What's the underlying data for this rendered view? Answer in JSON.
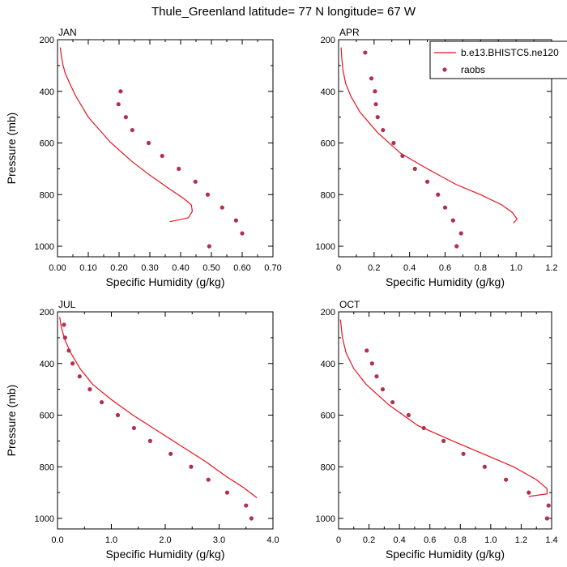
{
  "figure": {
    "title": "Thule_Greenland  latitude= 77 N longitude= 67 W"
  },
  "legend": {
    "placement": "top-right of APR panel",
    "entries": [
      {
        "label": "b.e13.BHISTC5.ne120",
        "style": "line",
        "color": "#e8131f"
      },
      {
        "label": "raobs",
        "style": "marker",
        "color": "#b2304f"
      }
    ]
  },
  "colors": {
    "model_line": "#e8131f",
    "raobs_marker": "#b2304f"
  },
  "chart_data": [
    {
      "type": "line",
      "panel": "JAN",
      "title": "JAN",
      "xlabel": "Specific Humidity (g/kg)",
      "ylabel": "Pressure (mb)",
      "xlim": [
        0,
        0.7
      ],
      "ylim": [
        1000,
        200
      ],
      "y_reversed": true,
      "xticks": [
        "0.00",
        "0.10",
        "0.20",
        "0.30",
        "0.40",
        "0.50",
        "0.60",
        "0.70"
      ],
      "yticks": [
        "200",
        "400",
        "600",
        "800",
        "1000"
      ],
      "series": [
        {
          "name": "b.e13.BHISTC5.ne120",
          "kind": "line",
          "x": [
            0.365,
            0.425,
            0.438,
            0.435,
            0.41,
            0.36,
            0.3,
            0.24,
            0.17,
            0.1,
            0.06,
            0.04,
            0.025,
            0.017,
            0.012,
            0.009
          ],
          "y": [
            905,
            890,
            865,
            840,
            815,
            775,
            725,
            670,
            595,
            500,
            420,
            370,
            330,
            295,
            260,
            230
          ]
        },
        {
          "name": "raobs",
          "kind": "scatter",
          "x": [
            0.205,
            0.198,
            0.222,
            0.243,
            0.296,
            0.34,
            0.394,
            0.448,
            0.488,
            0.535,
            0.58,
            0.6,
            0.493
          ],
          "y": [
            400,
            450,
            500,
            550,
            600,
            650,
            700,
            750,
            800,
            850,
            900,
            950,
            1000
          ]
        }
      ]
    },
    {
      "type": "line",
      "panel": "APR",
      "title": "APR",
      "xlabel": "Specific Humidity (g/kg)",
      "ylabel": "",
      "xlim": [
        0,
        1.2
      ],
      "ylim": [
        1000,
        200
      ],
      "y_reversed": true,
      "xticks": [
        "0",
        "0.2",
        "0.4",
        "0.6",
        "0.8",
        "1.0",
        "1.2"
      ],
      "yticks": [
        "200",
        "400",
        "600",
        "800",
        "1000"
      ],
      "series": [
        {
          "name": "b.e13.BHISTC5.ne120",
          "kind": "line",
          "x": [
            0.985,
            1.005,
            0.98,
            0.92,
            0.8,
            0.66,
            0.5,
            0.35,
            0.22,
            0.12,
            0.07,
            0.04,
            0.025,
            0.018,
            0.014
          ],
          "y": [
            910,
            895,
            870,
            840,
            800,
            760,
            700,
            640,
            560,
            480,
            420,
            370,
            320,
            270,
            230
          ]
        },
        {
          "name": "raobs",
          "kind": "scatter",
          "x": [
            0.15,
            0.185,
            0.205,
            0.21,
            0.22,
            0.25,
            0.31,
            0.36,
            0.43,
            0.5,
            0.56,
            0.6,
            0.645,
            0.69,
            0.665
          ],
          "y": [
            250,
            350,
            400,
            450,
            500,
            550,
            600,
            650,
            700,
            750,
            800,
            850,
            900,
            950,
            1000
          ]
        }
      ]
    },
    {
      "type": "line",
      "panel": "JUL",
      "title": "JUL",
      "xlabel": "Specific Humidity (g/kg)",
      "ylabel": "Pressure (mb)",
      "xlim": [
        0,
        4.0
      ],
      "ylim": [
        1000,
        200
      ],
      "y_reversed": true,
      "xticks": [
        "0.0",
        "1.0",
        "2.0",
        "3.0",
        "4.0"
      ],
      "yticks": [
        "200",
        "400",
        "600",
        "800",
        "1000"
      ],
      "series": [
        {
          "name": "b.e13.BHISTC5.ne120",
          "kind": "line",
          "x": [
            3.7,
            3.45,
            3.15,
            2.75,
            2.3,
            1.85,
            1.4,
            1.0,
            0.65,
            0.42,
            0.25,
            0.14,
            0.07,
            0.04
          ],
          "y": [
            920,
            880,
            840,
            780,
            720,
            660,
            600,
            540,
            480,
            420,
            360,
            310,
            260,
            220
          ]
        },
        {
          "name": "raobs",
          "kind": "scatter",
          "x": [
            0.12,
            0.14,
            0.21,
            0.28,
            0.41,
            0.6,
            0.82,
            1.12,
            1.42,
            1.72,
            2.1,
            2.48,
            2.8,
            3.15,
            3.5,
            3.6
          ],
          "y": [
            250,
            300,
            350,
            400,
            450,
            500,
            550,
            600,
            650,
            700,
            750,
            800,
            850,
            900,
            950,
            1000
          ]
        }
      ]
    },
    {
      "type": "line",
      "panel": "OCT",
      "title": "OCT",
      "xlabel": "Specific Humidity (g/kg)",
      "ylabel": "",
      "xlim": [
        0,
        1.4
      ],
      "ylim": [
        1000,
        200
      ],
      "y_reversed": true,
      "xticks": [
        "0",
        "0.2",
        "0.4",
        "0.6",
        "0.8",
        "1.0",
        "1.2",
        "1.4"
      ],
      "yticks": [
        "200",
        "400",
        "600",
        "800",
        "1000"
      ],
      "series": [
        {
          "name": "b.e13.BHISTC5.ne120",
          "kind": "line",
          "x": [
            1.25,
            1.37,
            1.37,
            1.3,
            1.15,
            0.95,
            0.75,
            0.52,
            0.33,
            0.18,
            0.1,
            0.05,
            0.025,
            0.012
          ],
          "y": [
            915,
            905,
            885,
            850,
            800,
            750,
            700,
            640,
            560,
            480,
            420,
            360,
            300,
            230
          ]
        },
        {
          "name": "raobs",
          "kind": "scatter",
          "x": [
            0.185,
            0.22,
            0.25,
            0.29,
            0.355,
            0.46,
            0.56,
            0.69,
            0.82,
            0.96,
            1.1,
            1.25,
            1.38,
            1.37
          ],
          "y": [
            350,
            400,
            450,
            500,
            550,
            600,
            650,
            700,
            750,
            800,
            850,
            900,
            950,
            1000
          ]
        }
      ]
    }
  ]
}
